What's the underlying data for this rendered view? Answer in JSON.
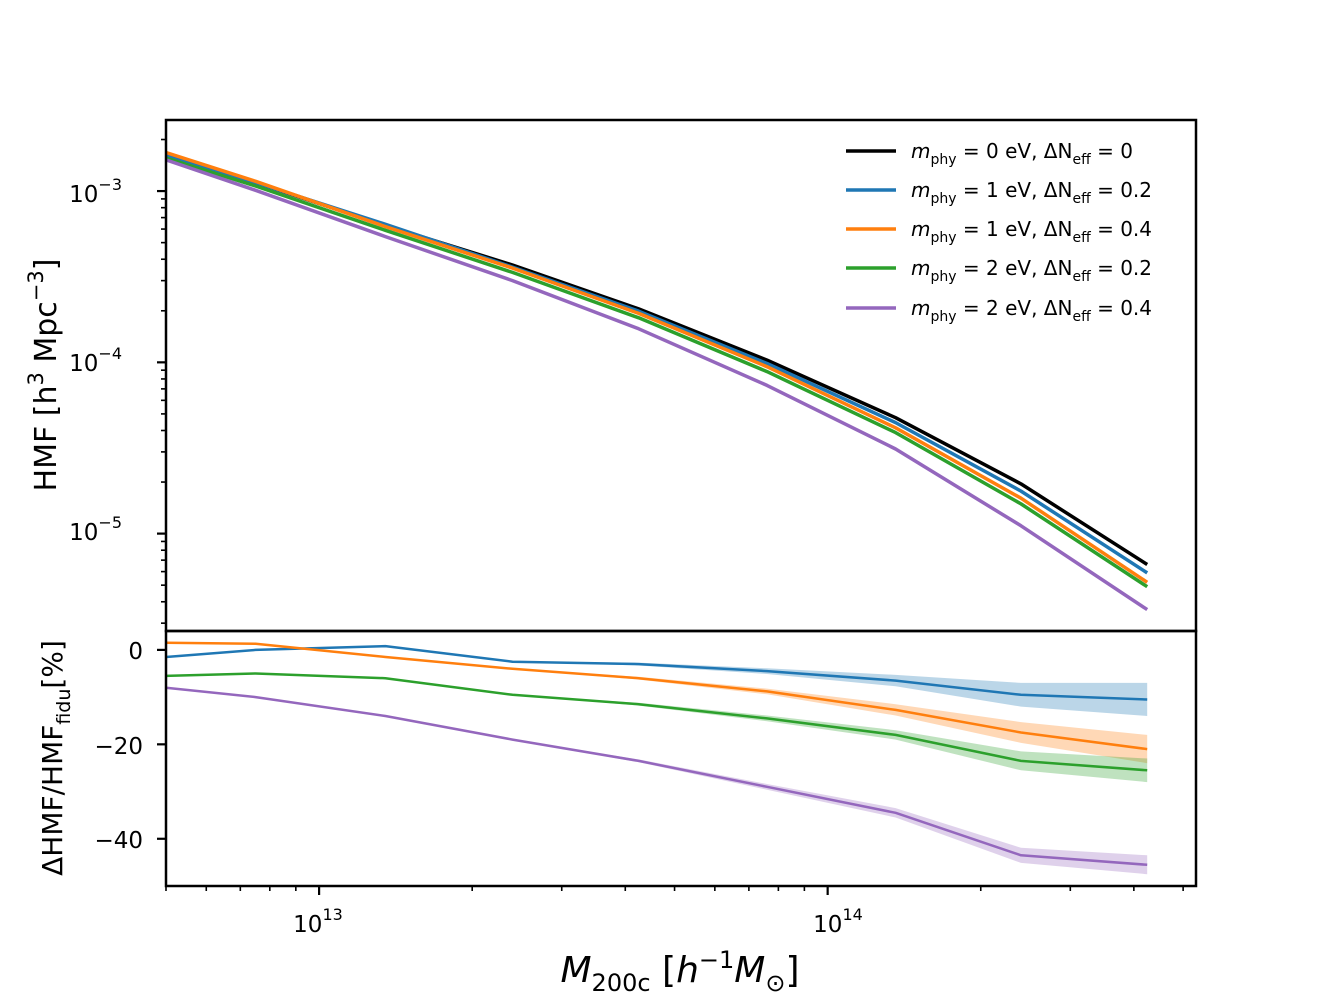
{
  "chart_data": [
    {
      "type": "line",
      "panel": "top",
      "xscale": "log",
      "yscale": "log",
      "xlim": [
        5000000000000,
        530000000000000
      ],
      "ylim": [
        2.7e-06,
        0.0026
      ],
      "xlabel": "",
      "ylabel": "HMF [h³ Mpc⁻³]",
      "ytick_labels": [
        {
          "value": 1e-05,
          "base": "10",
          "exp": "−5"
        },
        {
          "value": 0.0001,
          "base": "10",
          "exp": "−4"
        },
        {
          "value": 0.001,
          "base": "10",
          "exp": "−3"
        }
      ],
      "legend_position": "top-right",
      "x": [
        5000000000000,
        7500000000000,
        13500000000000,
        24000000000000,
        42500000000000,
        76000000000000,
        136000000000000,
        240000000000000,
        425000000000000
      ],
      "series": [
        {
          "name": "m_phy = 0 eV, ΔN_eff = 0",
          "color": "#000000",
          "values": [
            0.00165,
            0.00112,
            0.00063,
            0.00037,
            0.000205,
            0.000103,
            4.75e-05,
            1.95e-05,
            6.6e-06
          ]
        },
        {
          "name": "m_phy = 1 eV, ΔN_eff = 0.2",
          "color": "#1f77b4",
          "values": [
            0.00163,
            0.00112,
            0.00064,
            0.00036,
            0.000199,
            9.85e-05,
            4.45e-05,
            1.77e-05,
            5.9e-06
          ]
        },
        {
          "name": "m_phy = 1 eV, ΔN_eff = 0.4",
          "color": "#ff7f0e",
          "values": [
            0.00168,
            0.00114,
            0.00062,
            0.000355,
            0.000193,
            9.43e-05,
            4.15e-05,
            1.61e-05,
            5.2e-06
          ]
        },
        {
          "name": "m_phy = 2 eV, ΔN_eff = 0.2",
          "color": "#2ca02c",
          "values": [
            0.00156,
            0.00107,
            0.00059,
            0.000335,
            0.000182,
            8.83e-05,
            3.89e-05,
            1.49e-05,
            4.9e-06
          ]
        },
        {
          "name": "m_phy = 2 eV, ΔN_eff = 0.4",
          "color": "#9467bd",
          "values": [
            0.00152,
            0.00101,
            0.000542,
            0.0003,
            0.000157,
            7.33e-05,
            3.12e-05,
            1.11e-05,
            3.6e-06
          ]
        }
      ]
    },
    {
      "type": "area",
      "panel": "bottom",
      "xscale": "log",
      "xlim": [
        5000000000000,
        530000000000000
      ],
      "ylim": [
        -50,
        4
      ],
      "xlabel": "M_200c [h⁻¹ M_⊙]",
      "ylabel": "ΔHMF/HMF_fidu [%]",
      "yticks": [
        0,
        -20,
        -40
      ],
      "ytick_labels": [
        "0",
        "−20",
        "−40"
      ],
      "xtick_labels": [
        {
          "value": 10000000000000,
          "base": "10",
          "exp": "13"
        },
        {
          "value": 100000000000000,
          "base": "10",
          "exp": "14"
        }
      ],
      "x": [
        5000000000000,
        7500000000000,
        13500000000000,
        24000000000000,
        42500000000000,
        76000000000000,
        136000000000000,
        240000000000000,
        425000000000000
      ],
      "series": [
        {
          "name": "m_phy = 1 eV, ΔN_eff = 0.2",
          "color": "#1f77b4",
          "values": [
            -1.5,
            0,
            0.8,
            -2.5,
            -3,
            -4.5,
            -6.5,
            -9.5,
            -10.5
          ],
          "band": [
            0,
            0,
            0,
            0,
            0.3,
            0.6,
            1.2,
            2.5,
            3.5
          ]
        },
        {
          "name": "m_phy = 1 eV, ΔN_eff = 0.4",
          "color": "#ff7f0e",
          "values": [
            1.5,
            1.3,
            -1.5,
            -4,
            -6,
            -8.8,
            -12.7,
            -17.5,
            -21
          ],
          "band": [
            0,
            0,
            0,
            0,
            0.3,
            0.6,
            1.2,
            2.2,
            3
          ]
        },
        {
          "name": "m_phy = 2 eV, ΔN_eff = 0.2",
          "color": "#2ca02c",
          "values": [
            -5.5,
            -5,
            -6,
            -9.5,
            -11.5,
            -14.5,
            -18,
            -23.5,
            -25.5
          ],
          "band": [
            0,
            0,
            0,
            0,
            0.3,
            0.6,
            1,
            2,
            2.5
          ]
        },
        {
          "name": "m_phy = 2 eV, ΔN_eff = 0.4",
          "color": "#9467bd",
          "values": [
            -8,
            -10,
            -14,
            -19,
            -23.5,
            -29,
            -34.5,
            -43.5,
            -45.5
          ],
          "band": [
            0,
            0,
            0,
            0,
            0.3,
            0.6,
            1,
            1.6,
            2
          ]
        }
      ]
    }
  ],
  "legend": [
    {
      "m": "m",
      "m_sub": "phy",
      "m_val": " = 0 eV, ",
      "dn": "ΔN",
      "dn_sub": "eff",
      "dn_val": " = 0",
      "color": "#000000"
    },
    {
      "m": "m",
      "m_sub": "phy",
      "m_val": " = 1 eV, ",
      "dn": "ΔN",
      "dn_sub": "eff",
      "dn_val": " = 0.2",
      "color": "#1f77b4"
    },
    {
      "m": "m",
      "m_sub": "phy",
      "m_val": " = 1 eV, ",
      "dn": "ΔN",
      "dn_sub": "eff",
      "dn_val": " = 0.4",
      "color": "#ff7f0e"
    },
    {
      "m": "m",
      "m_sub": "phy",
      "m_val": " = 2 eV, ",
      "dn": "ΔN",
      "dn_sub": "eff",
      "dn_val": " = 0.2",
      "color": "#2ca02c"
    },
    {
      "m": "m",
      "m_sub": "phy",
      "m_val": " = 2 eV, ",
      "dn": "ΔN",
      "dn_sub": "eff",
      "dn_val": " = 0.4",
      "color": "#9467bd"
    }
  ],
  "labels": {
    "top_ylabel": {
      "main": "HMF [h",
      "sup1": "3",
      "mid": " Mpc",
      "sup2": "−3",
      "end": "]"
    },
    "bottom_ylabel": {
      "main": "ΔHMF/HMF",
      "sub": "fidu",
      "end": "[%]"
    },
    "xlabel": {
      "m": "M",
      "sub1": "200c",
      "open": " [",
      "h": "h",
      "sup": "−1",
      "m2": "M",
      "sub2": "⊙",
      "close": "]"
    }
  }
}
